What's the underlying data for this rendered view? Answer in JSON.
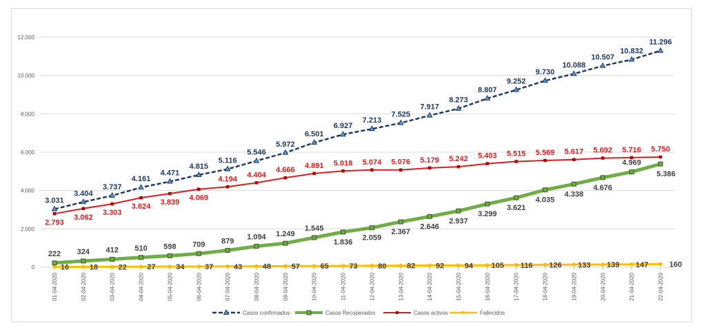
{
  "chart_data": {
    "type": "line",
    "categories": [
      "01-04-2020",
      "02-04-2020",
      "03-04-2020",
      "04-04-2020",
      "05-04-2020",
      "06-04-2020",
      "07-04-2020",
      "08-04-2020",
      "09-04-2020",
      "10-04-2020",
      "11-04-2020",
      "12-04-2020",
      "13-04-2020",
      "14-04-2020",
      "15-04-2020",
      "16-04-2020",
      "17-04-2020",
      "18-04-2020",
      "19-04-2020",
      "20-04-2020",
      "21-04-2020",
      "22-04-2020"
    ],
    "ylim": [
      0,
      12000
    ],
    "yticks": [
      0,
      2000,
      4000,
      6000,
      8000,
      10000,
      12000
    ],
    "ytick_labels": [
      "0",
      "2.000",
      "4.000",
      "6.000",
      "8.000",
      "10.000",
      "12.000"
    ],
    "grid": true,
    "legend_position": "bottom",
    "series": [
      {
        "name": "Casos confirmados",
        "color": "#1f3864",
        "style": "dashed",
        "marker": "triangle",
        "values": [
          3031,
          3404,
          3737,
          4161,
          4471,
          4815,
          5116,
          5546,
          5972,
          6501,
          6927,
          7213,
          7525,
          7917,
          8273,
          8807,
          9252,
          9730,
          10088,
          10507,
          10832,
          11296
        ],
        "labels": [
          "3.031",
          "3.404",
          "3.737",
          "4.161",
          "4.471",
          "4.815",
          "5.116",
          "5.546",
          "5.972",
          "6.501",
          "6.927",
          "7.213",
          "7.525",
          "7.917",
          "8.273",
          "8.807",
          "9.252",
          "9.730",
          "10.088",
          "10.507",
          "10.832",
          "11.296"
        ]
      },
      {
        "name": "Casos Recuperados",
        "color": "#70ad47",
        "style": "thick",
        "marker": "square",
        "values": [
          222,
          324,
          412,
          510,
          598,
          709,
          879,
          1094,
          1249,
          1545,
          1836,
          2059,
          2367,
          2646,
          2937,
          3299,
          3621,
          4035,
          4338,
          4676,
          4969,
          5386
        ],
        "labels": [
          "222",
          "324",
          "412",
          "510",
          "598",
          "709",
          "879",
          "1.094",
          "1.249",
          "1.545",
          "1.836",
          "2.059",
          "2.367",
          "2.646",
          "2.937",
          "3.299",
          "3.621",
          "4.035",
          "4.338",
          "4.676",
          "4.969",
          "5.386"
        ]
      },
      {
        "name": "Casos activos",
        "color": "#e31a1c",
        "style": "solid",
        "marker": "square",
        "values": [
          2793,
          3062,
          3303,
          3624,
          3839,
          4069,
          4194,
          4404,
          4666,
          4891,
          5018,
          5074,
          5076,
          5179,
          5242,
          5403,
          5515,
          5569,
          5617,
          5692,
          5716,
          5750
        ],
        "labels": [
          "2.793",
          "3.062",
          "3.303",
          "3.624",
          "3.839",
          "4.069",
          "4.194",
          "4.404",
          "4.666",
          "4.891",
          "5.018",
          "5.074",
          "5.076",
          "5.179",
          "5.242",
          "5.403",
          "5.515",
          "5.569",
          "5.617",
          "5.692",
          "5.716",
          "5.750"
        ]
      },
      {
        "name": "Fallecidos",
        "color": "#ffc000",
        "style": "solid",
        "marker": "circle",
        "values": [
          16,
          18,
          22,
          27,
          34,
          37,
          43,
          48,
          57,
          65,
          73,
          80,
          82,
          92,
          94,
          105,
          116,
          126,
          133,
          139,
          147,
          160
        ],
        "labels": [
          "16",
          "18",
          "22",
          "27",
          "34",
          "37",
          "43",
          "48",
          "57",
          "65",
          "73",
          "80",
          "82",
          "92",
          "94",
          "105",
          "116",
          "126",
          "133",
          "139",
          "147",
          "160"
        ]
      }
    ]
  }
}
